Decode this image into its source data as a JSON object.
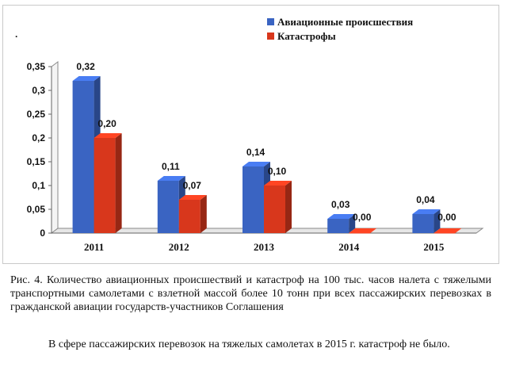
{
  "figure": {
    "caption": "Рис. 4.   Количество авиационных происшествий и катастроф на 100 тыс. часов налета с тяжелыми транспортными самолетами с взлетной массой более 10 тонн при всех пассажирских перевозках в гражданской авиации государств-участников Соглашения",
    "marker": "."
  },
  "body_text": "В сфере пассажирских перевозок на тяжелых самолетах в 2015 г. катастроф не было.",
  "chart_data": {
    "type": "bar",
    "style": "3d-clustered",
    "categories": [
      "2011",
      "2012",
      "2013",
      "2014",
      "2015"
    ],
    "series": [
      {
        "name": "Авиационные происшествия",
        "values": [
          0.32,
          0.11,
          0.14,
          0.03,
          0.04
        ],
        "labels": [
          "0,32",
          "0,11",
          "0,14",
          "0,03",
          "0,04"
        ],
        "color": "#3a64c2"
      },
      {
        "name": "Катастрофы",
        "values": [
          0.2,
          0.07,
          0.1,
          0.0,
          0.0
        ],
        "labels": [
          "0,20",
          "0,07",
          "0,10",
          "0,00",
          "0,00"
        ],
        "color": "#d8371c"
      }
    ],
    "ylim": [
      0,
      0.35
    ],
    "yticks": [
      0,
      0.05,
      0.1,
      0.15,
      0.2,
      0.25,
      0.3,
      0.35
    ],
    "ytick_labels": [
      "0",
      "0,05",
      "0,1",
      "0,15",
      "0,2",
      "0,25",
      "0,3",
      "0,35"
    ],
    "legend_position": "top-right",
    "grid": false
  }
}
